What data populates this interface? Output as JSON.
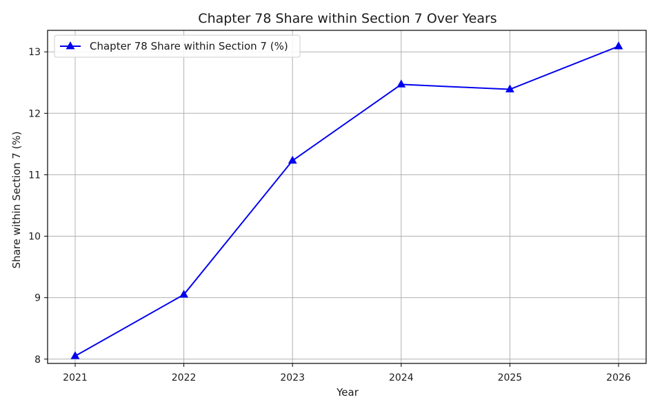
{
  "chart_data": {
    "type": "line",
    "title": "Chapter 78 Share within Section 7 Over Years",
    "xlabel": "Year",
    "ylabel": "Share within Section 7 (%)",
    "x": [
      "2021",
      "2022",
      "2023",
      "2024",
      "2025",
      "2026"
    ],
    "ylim": [
      7.93,
      13.35
    ],
    "yticks": [
      "8",
      "9",
      "10",
      "11",
      "12",
      "13"
    ],
    "grid": true,
    "legend_position": "upper-left",
    "series": [
      {
        "name": "Chapter 78 Share within Section 7 (%)",
        "values": [
          8.05,
          9.05,
          11.23,
          12.47,
          12.39,
          13.09
        ],
        "color": "#0000ee",
        "marker": "triangle-up"
      }
    ]
  }
}
